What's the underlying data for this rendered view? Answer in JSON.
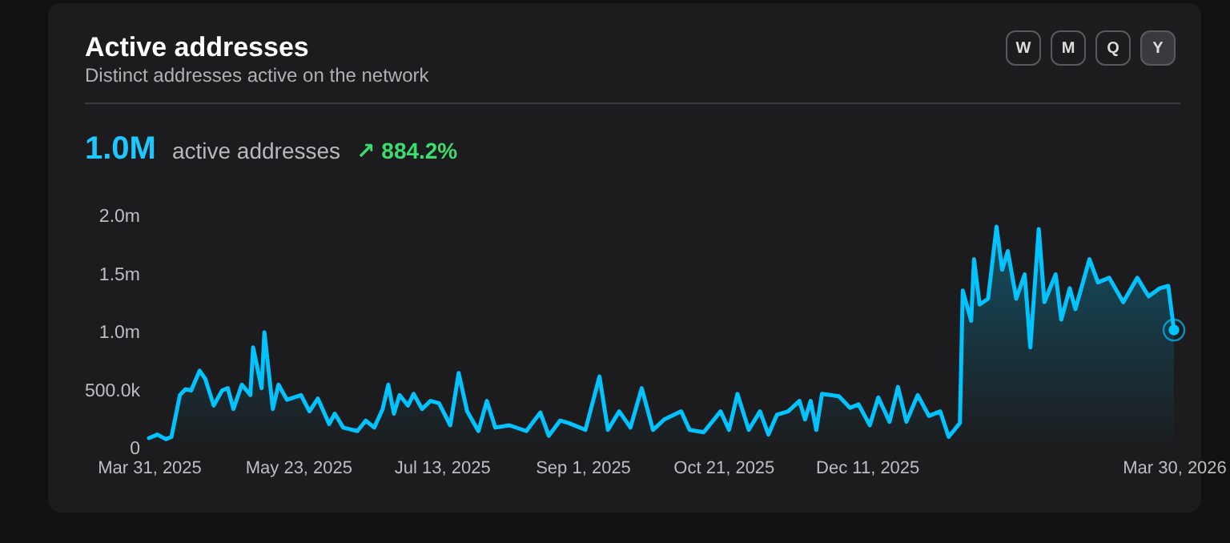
{
  "chart_data": {
    "type": "area",
    "title": "Active addresses",
    "subtitle": "Distinct addresses active on the network",
    "annotations": [
      "1.0M",
      "active addresses",
      "↗ 884.2%",
      "W",
      "M",
      "Q",
      "Y"
    ],
    "x": [
      "2025-03-31",
      "2025-04-03",
      "2025-04-06",
      "2025-04-08",
      "2025-04-11",
      "2025-04-13",
      "2025-04-15",
      "2025-04-18",
      "2025-04-20",
      "2025-04-23",
      "2025-04-26",
      "2025-04-28",
      "2025-04-30",
      "2025-05-03",
      "2025-05-06",
      "2025-05-07",
      "2025-05-10",
      "2025-05-11",
      "2025-05-14",
      "2025-05-16",
      "2025-05-19",
      "2025-05-24",
      "2025-05-27",
      "2025-05-30",
      "2025-06-03",
      "2025-06-05",
      "2025-06-08",
      "2025-06-13",
      "2025-06-16",
      "2025-06-19",
      "2025-06-22",
      "2025-06-24",
      "2025-06-26",
      "2025-06-28",
      "2025-07-01",
      "2025-07-03",
      "2025-07-06",
      "2025-07-09",
      "2025-07-12",
      "2025-07-16",
      "2025-07-19",
      "2025-07-22",
      "2025-07-26",
      "2025-07-29",
      "2025-08-01",
      "2025-08-06",
      "2025-08-12",
      "2025-08-17",
      "2025-08-20",
      "2025-08-24",
      "2025-08-27",
      "2025-09-02",
      "2025-09-07",
      "2025-09-10",
      "2025-09-14",
      "2025-09-18",
      "2025-09-22",
      "2025-09-26",
      "2025-09-30",
      "2025-10-06",
      "2025-10-09",
      "2025-10-14",
      "2025-10-20",
      "2025-10-23",
      "2025-10-26",
      "2025-10-30",
      "2025-11-03",
      "2025-11-06",
      "2025-11-09",
      "2025-11-13",
      "2025-11-17",
      "2025-11-19",
      "2025-11-21",
      "2025-11-23",
      "2025-11-25",
      "2025-12-01",
      "2025-12-05",
      "2025-12-08",
      "2025-12-12",
      "2025-12-15",
      "2025-12-19",
      "2025-12-22",
      "2025-12-25",
      "2025-12-29",
      "2026-01-02",
      "2026-01-06",
      "2026-01-09",
      "2026-01-13",
      "2026-01-14",
      "2026-01-17",
      "2026-01-18",
      "2026-01-20",
      "2026-01-23",
      "2026-01-26",
      "2026-01-28",
      "2026-01-30",
      "2026-02-02",
      "2026-02-05",
      "2026-02-07",
      "2026-02-10",
      "2026-02-12",
      "2026-02-16",
      "2026-02-18",
      "2026-02-21",
      "2026-02-23",
      "2026-02-28",
      "2026-03-03",
      "2026-03-07",
      "2026-03-12",
      "2026-03-17",
      "2026-03-21",
      "2026-03-25",
      "2026-03-28",
      "2026-03-30"
    ],
    "series": [
      {
        "color": "#00c3ff",
        "values": [
          90000,
          120000,
          80000,
          100000,
          460000,
          510000,
          500000,
          670000,
          600000,
          370000,
          500000,
          520000,
          340000,
          550000,
          460000,
          870000,
          520000,
          1000000,
          340000,
          550000,
          420000,
          460000,
          320000,
          430000,
          210000,
          300000,
          180000,
          150000,
          240000,
          180000,
          340000,
          550000,
          300000,
          460000,
          370000,
          470000,
          340000,
          410000,
          390000,
          200000,
          650000,
          320000,
          150000,
          410000,
          180000,
          200000,
          150000,
          310000,
          110000,
          240000,
          220000,
          160000,
          620000,
          160000,
          320000,
          180000,
          520000,
          160000,
          250000,
          320000,
          160000,
          140000,
          320000,
          160000,
          470000,
          160000,
          320000,
          120000,
          290000,
          320000,
          410000,
          250000,
          410000,
          160000,
          470000,
          450000,
          350000,
          380000,
          200000,
          440000,
          230000,
          530000,
          230000,
          460000,
          280000,
          320000,
          100000,
          220000,
          1360000,
          1100000,
          1630000,
          1240000,
          1290000,
          1910000,
          1540000,
          1700000,
          1290000,
          1500000,
          870000,
          1890000,
          1260000,
          1500000,
          1110000,
          1380000,
          1200000,
          1630000,
          1430000,
          1470000,
          1260000,
          1470000,
          1310000,
          1380000,
          1400000,
          1020000
        ]
      }
    ],
    "xlim": [
      "2025-03-31",
      "2026-03-30"
    ],
    "xticks": [
      {
        "value": "2025-03-31",
        "label": "Mar 31, 2025"
      },
      {
        "value": "2025-05-23",
        "label": "May 23, 2025"
      },
      {
        "value": "2025-07-13",
        "label": "Jul 13, 2025"
      },
      {
        "value": "2025-09-01",
        "label": "Sep 1, 2025"
      },
      {
        "value": "2025-10-21",
        "label": "Oct 21, 2025"
      },
      {
        "value": "2025-12-11",
        "label": "Dec 11, 2025"
      },
      {
        "value": "2026-03-30",
        "label": "Mar 30, 2026"
      }
    ],
    "ylim": [
      0,
      2000000
    ],
    "yticks": [
      0,
      {
        "value": 500000,
        "label": "500.0k"
      },
      {
        "value": 1000000,
        "label": "1.0m"
      },
      {
        "value": 1500000,
        "label": "1.5m"
      },
      {
        "value": 2000000,
        "label": "2.0m"
      }
    ]
  }
}
